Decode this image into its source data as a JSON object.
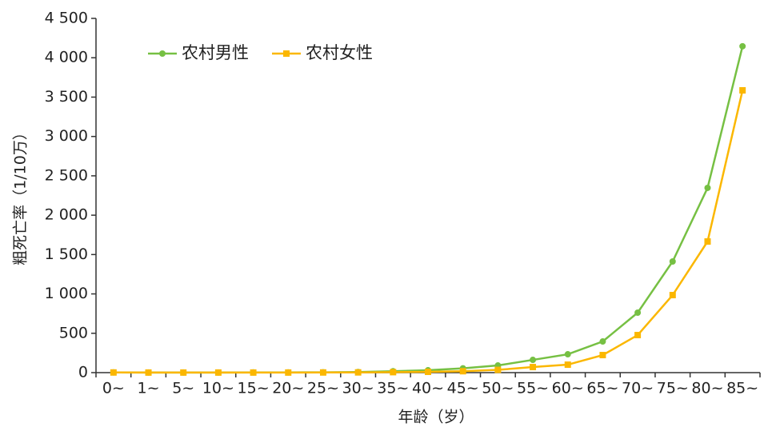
{
  "chart_data": {
    "type": "line",
    "x_label": "年龄（岁）",
    "y_label": "粗死亡率（1/10万）",
    "categories": [
      "0~",
      "1~",
      "5~",
      "10~",
      "15~",
      "20~",
      "25~",
      "30~",
      "35~",
      "40~",
      "45~",
      "50~",
      "55~",
      "60~",
      "65~",
      "70~",
      "75~",
      "80~",
      "85~"
    ],
    "series": [
      {
        "name": "农村男性",
        "color": "#76c043",
        "marker": "circle",
        "values": [
          3,
          1,
          1,
          1,
          2,
          3,
          4,
          8,
          18,
          30,
          55,
          91,
          162,
          233,
          396,
          762,
          1412,
          2347,
          4146
        ]
      },
      {
        "name": "农村女性",
        "color": "#fbb700",
        "marker": "square",
        "values": [
          2,
          1,
          1,
          1,
          1,
          1,
          2,
          3,
          6,
          10,
          18,
          35,
          71,
          101,
          223,
          477,
          985,
          1666,
          3586
        ]
      }
    ],
    "ylim": [
      0,
      4500
    ],
    "yticks": [
      0,
      500,
      {
        "value": 1000,
        "label": "1 000"
      },
      {
        "value": 1500,
        "label": "1 500"
      },
      {
        "value": 2000,
        "label": "2 000"
      },
      {
        "value": 2500,
        "label": "2 500"
      },
      {
        "value": 3000,
        "label": "3 000"
      },
      {
        "value": 3500,
        "label": "3 500"
      },
      {
        "value": 4000,
        "label": "4 000"
      },
      {
        "value": 4500,
        "label": "4 500"
      }
    ],
    "grid": false,
    "legend": "top-left"
  }
}
